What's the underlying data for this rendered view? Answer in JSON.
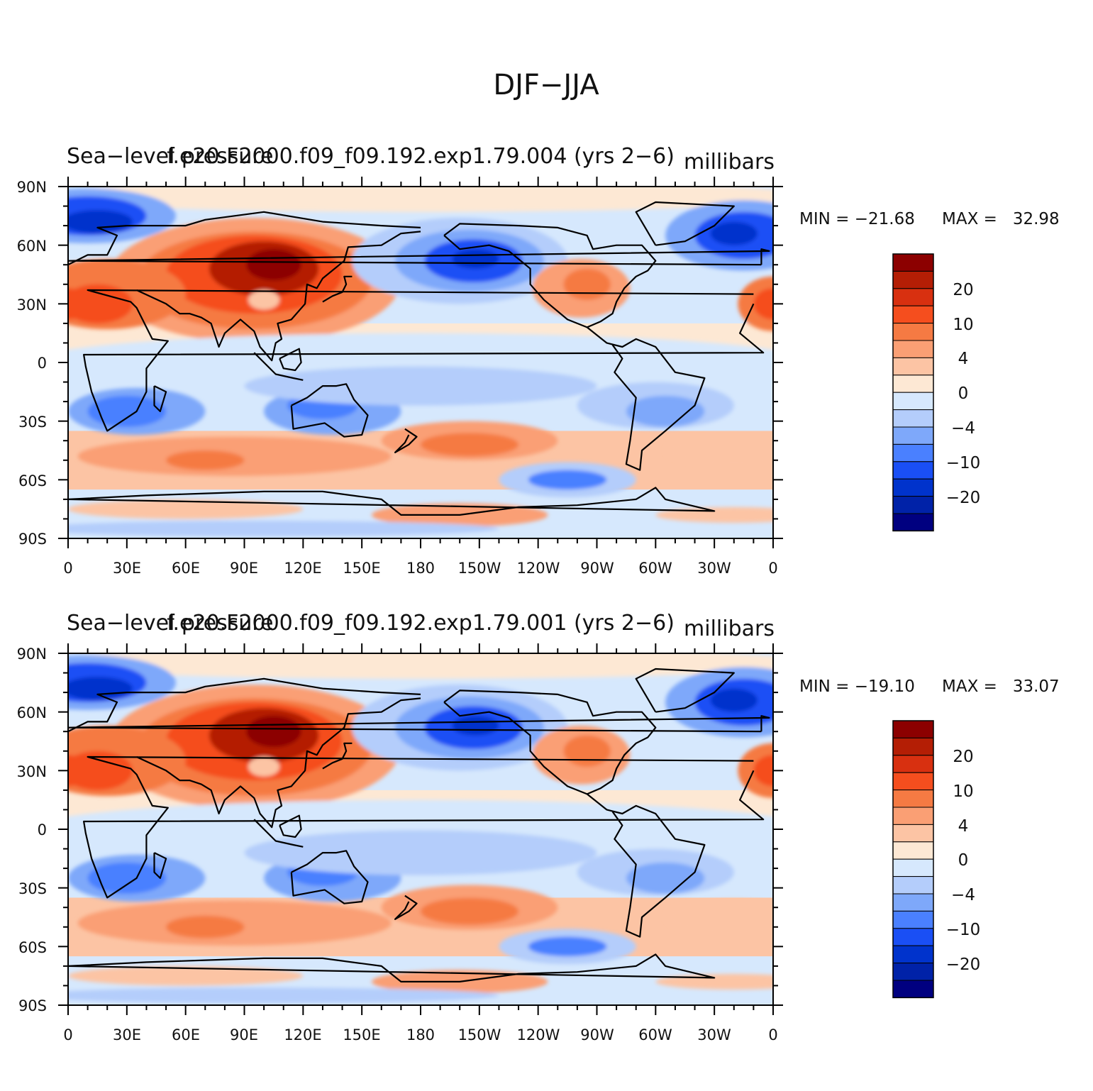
{
  "figure_title": "DJF−JJA",
  "colors": {
    "levels": [
      "#000080",
      "#0022a8",
      "#0033cc",
      "#1a4ff5",
      "#4a80ff",
      "#7ea8fa",
      "#b4cdfb",
      "#d6e8fd",
      "#fde8d4",
      "#fcc4a4",
      "#fa9f74",
      "#f57a43",
      "#f54e1e",
      "#d83010",
      "#b41e05",
      "#8c0000"
    ],
    "coast": "#000000"
  },
  "chart_data": [
    {
      "type": "contour-map",
      "title_left": "Sea−level pressure",
      "title_center": "f.e20.F2000.f09_f09.192.exp1.79.004 (yrs 2−6)",
      "units": "millibars",
      "min_label": "MIN = −21.68",
      "max_label": "MAX =   32.98",
      "min": -21.68,
      "max": 32.98,
      "variable": "Sea-level pressure (DJF minus JJA)",
      "x_ticks": [
        "0",
        "30E",
        "60E",
        "90E",
        "120E",
        "150E",
        "180",
        "150W",
        "120W",
        "90W",
        "60W",
        "30W",
        "0"
      ],
      "y_ticks": [
        "90N",
        "60N",
        "30N",
        "0",
        "30S",
        "60S",
        "90S"
      ],
      "xlim": [
        0,
        360
      ],
      "ylim": [
        -90,
        90
      ],
      "contour_levels": [
        -25,
        -20,
        -15,
        -10,
        -7,
        -4,
        -2,
        0,
        2,
        4,
        7,
        10,
        15,
        20,
        25
      ],
      "colorbar_labels": [
        "20",
        "10",
        "4",
        "0",
        "−4",
        "−10",
        "−20"
      ]
    },
    {
      "type": "contour-map",
      "title_left": "Sea−level pressure",
      "title_center": "f.e20.F2000.f09_f09.192.exp1.79.001 (yrs 2−6)",
      "units": "millibars",
      "min_label": "MIN = −19.10",
      "max_label": "MAX =   33.07",
      "min": -19.1,
      "max": 33.07,
      "variable": "Sea-level pressure (DJF minus JJA)",
      "x_ticks": [
        "0",
        "30E",
        "60E",
        "90E",
        "120E",
        "150E",
        "180",
        "150W",
        "120W",
        "90W",
        "60W",
        "30W",
        "0"
      ],
      "y_ticks": [
        "90N",
        "60N",
        "30N",
        "0",
        "30S",
        "60S",
        "90S"
      ],
      "xlim": [
        0,
        360
      ],
      "ylim": [
        -90,
        90
      ],
      "contour_levels": [
        -25,
        -20,
        -15,
        -10,
        -7,
        -4,
        -2,
        0,
        2,
        4,
        7,
        10,
        15,
        20,
        25
      ],
      "colorbar_labels": [
        "20",
        "10",
        "4",
        "0",
        "−4",
        "−10",
        "−20"
      ]
    }
  ]
}
